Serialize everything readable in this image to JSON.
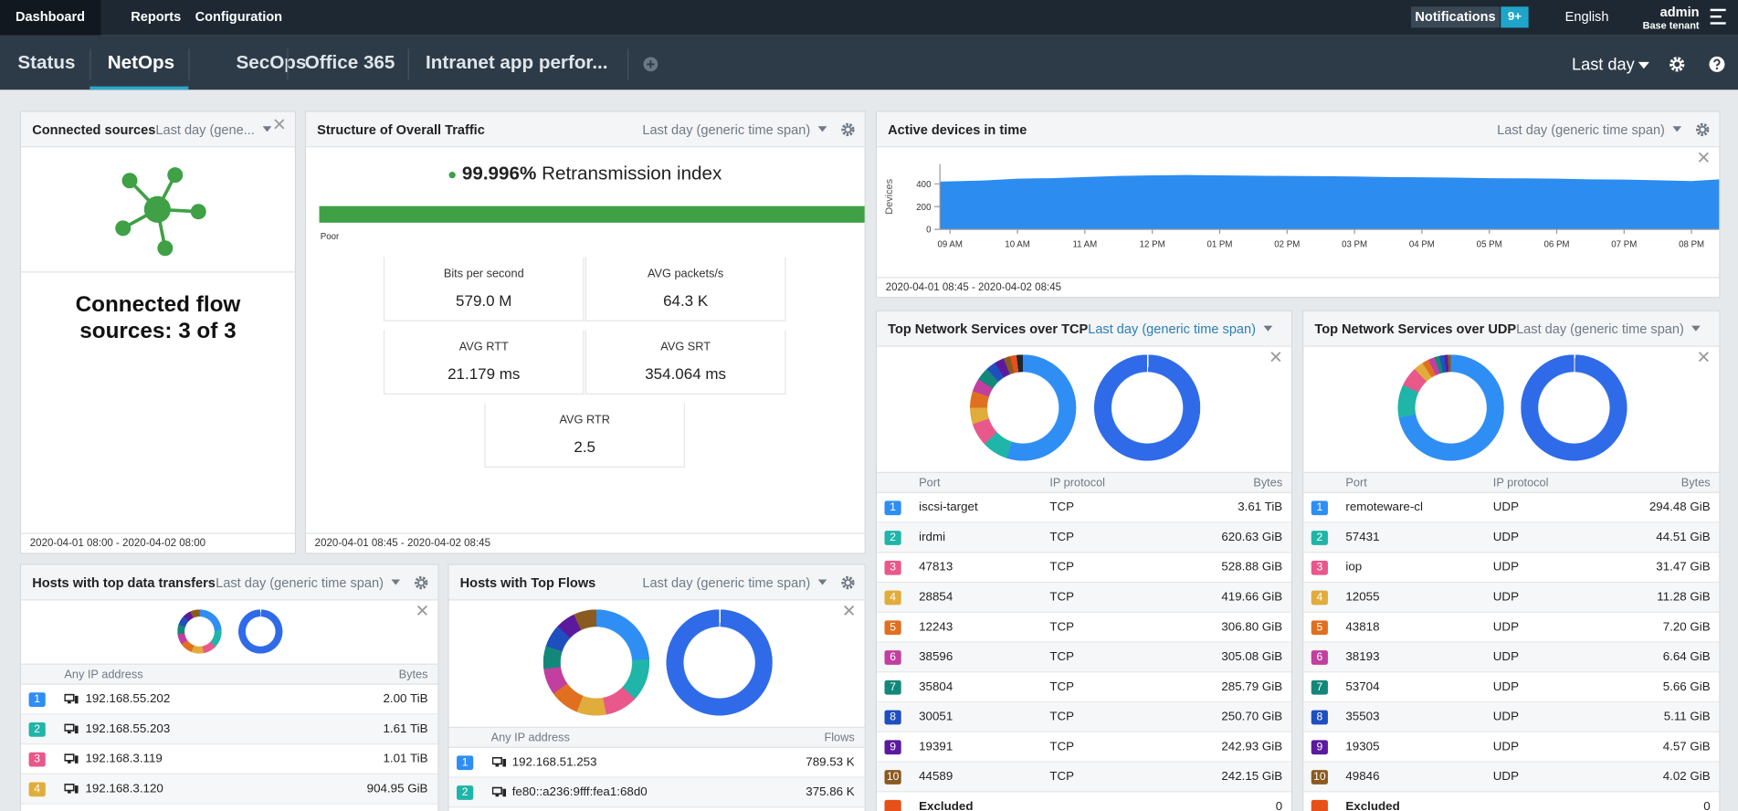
{
  "nav": {
    "items": [
      "Dashboard",
      "Reports",
      "Configuration"
    ],
    "notifications": "Notifications",
    "notifications_count": "9+",
    "language": "English",
    "user": "admin",
    "tenant": "Base tenant"
  },
  "tabs": {
    "items": [
      "Status",
      "NetOps",
      "SecOps",
      "Office 365",
      "Intranet app perfor..."
    ],
    "time_range": "Last day"
  },
  "widgets": {
    "connected_sources": {
      "title": "Connected sources",
      "time_range": "Last day (gene...",
      "text": "Connected flow sources: 3 of 3",
      "footer": "2020-04-01 08:00 - 2020-04-02 08:00"
    },
    "traffic": {
      "title": "Structure of Overall Traffic",
      "time_range": "Last day (generic time span)",
      "index_value": "99.996%",
      "index_label": "Retransmission index",
      "scale_label": "Poor",
      "metrics": [
        {
          "label": "Bits per second",
          "value": "579.0 M"
        },
        {
          "label": "AVG packets/s",
          "value": "64.3 K"
        },
        {
          "label": "AVG RTT",
          "value": "21.179 ms"
        },
        {
          "label": "AVG SRT",
          "value": "354.064 ms"
        },
        {
          "label": "AVG RTR",
          "value": "2.5"
        }
      ],
      "footer": "2020-04-01 08:45 - 2020-04-02 08:45"
    },
    "active_devices": {
      "type": "area",
      "title": "Active devices in time",
      "time_range": "Last day (generic time span)",
      "ylabel": "Devices",
      "color": "#2d8cf0",
      "ylim": [
        0,
        575
      ],
      "yticks": [
        0,
        200,
        400
      ],
      "xlim": [
        8.85,
        20.41
      ],
      "xticks": [
        {
          "value": 9,
          "label": "09 AM"
        },
        {
          "value": 10,
          "label": "10 AM"
        },
        {
          "value": 11,
          "label": "11 AM"
        },
        {
          "value": 12,
          "label": "12 PM"
        },
        {
          "value": 13,
          "label": "01 PM"
        },
        {
          "value": 14,
          "label": "02 PM"
        },
        {
          "value": 15,
          "label": "03 PM"
        },
        {
          "value": 16,
          "label": "04 PM"
        },
        {
          "value": 17,
          "label": "05 PM"
        },
        {
          "value": 18,
          "label": "06 PM"
        },
        {
          "value": 19,
          "label": "07 PM"
        },
        {
          "value": 20,
          "label": "08 PM"
        }
      ],
      "x": [
        8.85,
        9.5,
        10,
        10.5,
        11,
        11.5,
        12,
        12.5,
        13,
        13.5,
        14,
        14.5,
        15,
        15.5,
        16,
        16.5,
        17,
        17.5,
        18,
        18.5,
        19,
        19.5,
        20,
        20.41
      ],
      "values": [
        420,
        430,
        445,
        450,
        460,
        470,
        475,
        478,
        475,
        472,
        470,
        468,
        465,
        460,
        458,
        455,
        450,
        448,
        445,
        440,
        438,
        432,
        425,
        440
      ],
      "footer": "2020-04-01 08:45 - 2020-04-02 08:45"
    },
    "tcp": {
      "title": "Top Network Services over TCP",
      "time_range": "Last day (generic time span)",
      "columns": [
        "Port",
        "IP protocol",
        "Bytes"
      ],
      "rows": [
        [
          "1",
          "iscsi-target",
          "TCP",
          "3.61 TiB"
        ],
        [
          "2",
          "irdmi",
          "TCP",
          "620.63 GiB"
        ],
        [
          "3",
          "47813",
          "TCP",
          "528.88 GiB"
        ],
        [
          "4",
          "28854",
          "TCP",
          "419.66 GiB"
        ],
        [
          "5",
          "12243",
          "TCP",
          "306.80 GiB"
        ],
        [
          "6",
          "38596",
          "TCP",
          "305.08 GiB"
        ],
        [
          "7",
          "35804",
          "TCP",
          "285.79 GiB"
        ],
        [
          "8",
          "30051",
          "TCP",
          "250.70 GiB"
        ],
        [
          "9",
          "19391",
          "TCP",
          "242.93 GiB"
        ],
        [
          "10",
          "44589",
          "TCP",
          "242.15 GiB"
        ]
      ],
      "excluded": [
        "Excluded",
        "0"
      ]
    },
    "udp": {
      "title": "Top Network Services over UDP",
      "time_range": "Last day (generic time span)",
      "columns": [
        "Port",
        "IP protocol",
        "Bytes"
      ],
      "rows": [
        [
          "1",
          "remoteware-cl",
          "UDP",
          "294.48 GiB"
        ],
        [
          "2",
          "57431",
          "UDP",
          "44.51 GiB"
        ],
        [
          "3",
          "iop",
          "UDP",
          "31.47 GiB"
        ],
        [
          "4",
          "12055",
          "UDP",
          "11.28 GiB"
        ],
        [
          "5",
          "43818",
          "UDP",
          "7.20 GiB"
        ],
        [
          "6",
          "38193",
          "UDP",
          "6.64 GiB"
        ],
        [
          "7",
          "53704",
          "UDP",
          "5.66 GiB"
        ],
        [
          "8",
          "35503",
          "UDP",
          "5.11 GiB"
        ],
        [
          "9",
          "19305",
          "UDP",
          "4.57 GiB"
        ],
        [
          "10",
          "49846",
          "UDP",
          "4.02 GiB"
        ]
      ],
      "excluded": [
        "Excluded",
        "0"
      ]
    },
    "hosts_data": {
      "title": "Hosts with top data transfers",
      "time_range": "Last day (generic time span)",
      "columns": [
        "Any IP address",
        "Bytes"
      ],
      "rows": [
        [
          "1",
          "192.168.55.202",
          "2.00 TiB"
        ],
        [
          "2",
          "192.168.55.203",
          "1.61 TiB"
        ],
        [
          "3",
          "192.168.3.119",
          "1.01 TiB"
        ],
        [
          "4",
          "192.168.3.120",
          "904.95 GiB"
        ]
      ]
    },
    "hosts_flows": {
      "title": "Hosts with Top Flows",
      "time_range": "Last day (generic time span)",
      "columns": [
        "Any IP address",
        "Flows"
      ],
      "rows": [
        [
          "1",
          "192.168.51.253",
          "789.53 K"
        ],
        [
          "2",
          "fe80::a236:9fff:fea1:68d0",
          "375.86 K"
        ]
      ]
    }
  }
}
